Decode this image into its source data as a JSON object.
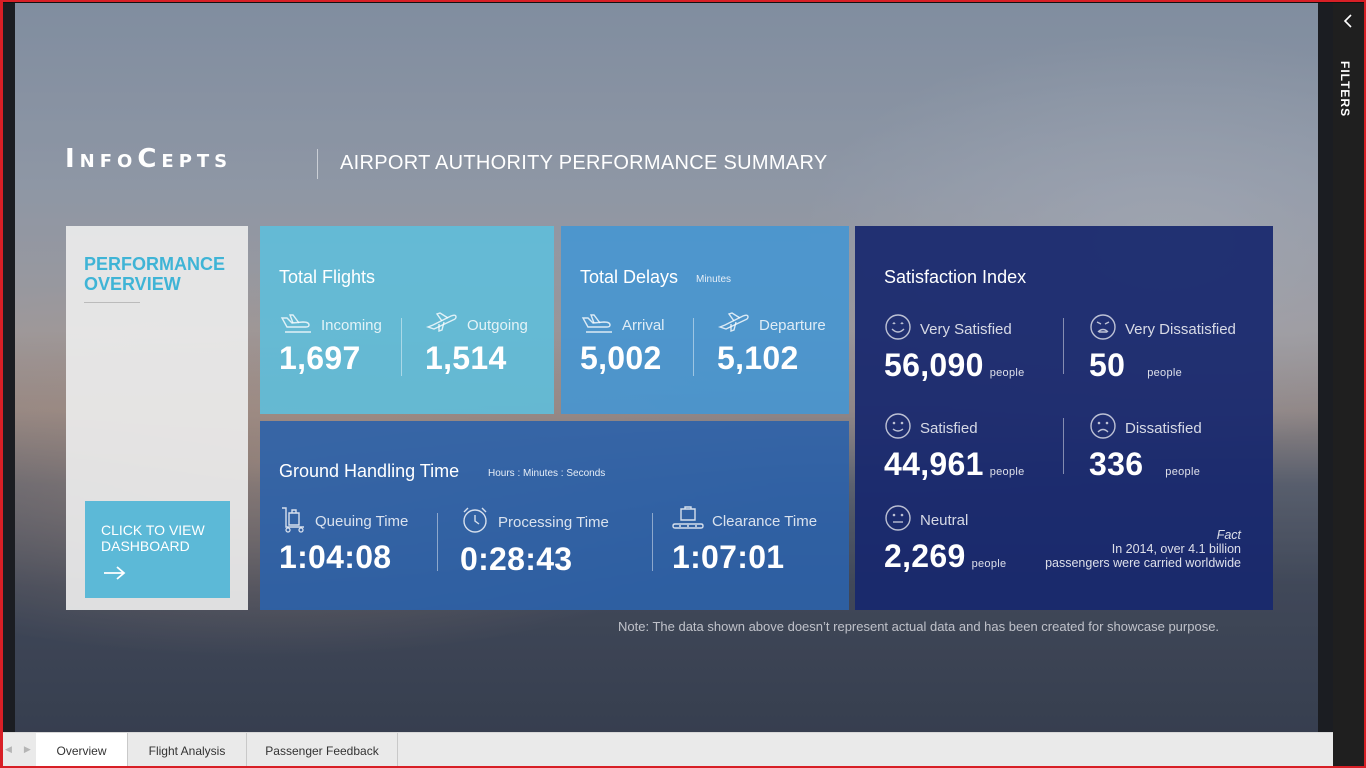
{
  "header": {
    "logo_text": "InfoCepts",
    "title": "AIRPORT AUTHORITY PERFORMANCE SUMMARY"
  },
  "performance_overview": {
    "title": "PERFORMANCE OVERVIEW",
    "cta_label": "CLICK TO VIEW DASHBOARD"
  },
  "total_flights": {
    "title": "Total Flights",
    "incoming_label": "Incoming",
    "incoming_value": "1,697",
    "outgoing_label": "Outgoing",
    "outgoing_value": "1,514"
  },
  "total_delays": {
    "title": "Total Delays",
    "unit": "Minutes",
    "arrival_label": "Arrival",
    "arrival_value": "5,002",
    "departure_label": "Departure",
    "departure_value": "5,102"
  },
  "ground_handling": {
    "title": "Ground Handling Time",
    "unit": "Hours : Minutes : Seconds",
    "queuing_label": "Queuing Time",
    "queuing_value": "1:04:08",
    "processing_label": "Processing Time",
    "processing_value": "0:28:43",
    "clearance_label": "Clearance Time",
    "clearance_value": "1:07:01"
  },
  "satisfaction": {
    "title": "Satisfaction Index",
    "people_unit": "people",
    "very_satisfied_label": "Very Satisfied",
    "very_satisfied_value": "56,090",
    "very_dissatisfied_label": "Very Dissatisfied",
    "very_dissatisfied_value": "50",
    "satisfied_label": "Satisfied",
    "satisfied_value": "44,961",
    "dissatisfied_label": "Dissatisfied",
    "dissatisfied_value": "336",
    "neutral_label": "Neutral",
    "neutral_value": "2,269",
    "fact_label": "Fact",
    "fact_line1": "In 2014, over 4.1 billion",
    "fact_line2": "passengers were carried worldwide"
  },
  "note": "Note: The data shown above doesn’t represent actual data and has been created for showcase purpose.",
  "filters_pane": {
    "label": "FILTERS"
  },
  "tabs": [
    {
      "label": "Overview"
    },
    {
      "label": "Flight Analysis"
    },
    {
      "label": "Passenger Feedback"
    }
  ],
  "colors": {
    "accent_light_blue": "#5cb9d7",
    "delays_blue": "#4696d2",
    "ground_blue": "#2c62aa",
    "satisfaction_navy": "#18286e",
    "frame_red": "#d81f26"
  }
}
